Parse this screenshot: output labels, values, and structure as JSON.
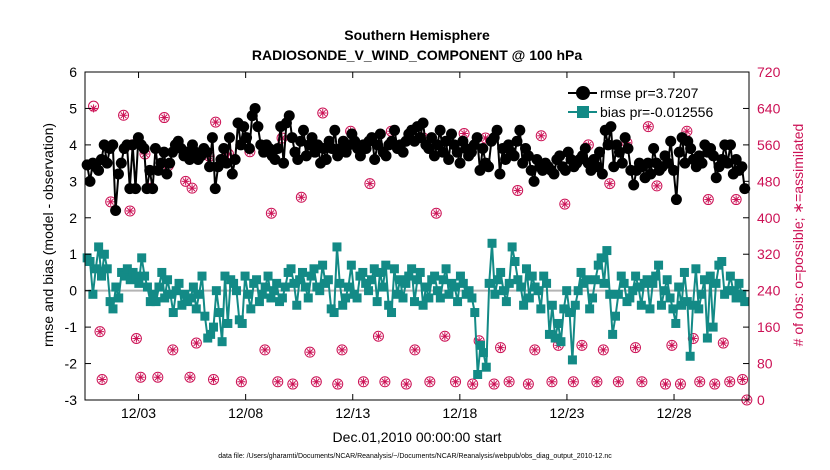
{
  "chart_data": {
    "type": "line",
    "title": "Southern Hemisphere",
    "subtitle": "RADIOSONDE_V_WIND_COMPONENT @ 100 hPa",
    "xlabel": "Dec.01,2010 00:00:00 start",
    "ylabel_left": "rmse and bias (model - observation)",
    "ylabel_right": "# of obs: o=possible; ∗=assimilated",
    "footnote": "data file: /Users/gharamti/Documents/NCAR/Reanalysis/~/Documents/NCAR/Reanalysis/webpub/obs_diag_output_2010-12.nc",
    "xlim": [
      0.5,
      31.5
    ],
    "ylim_left": [
      -3,
      6
    ],
    "ylim_right": [
      0,
      720
    ],
    "x_ticks": [
      3,
      8,
      13,
      18,
      23,
      28
    ],
    "x_tick_labels": [
      "12/03",
      "12/08",
      "12/13",
      "12/18",
      "12/23",
      "12/28"
    ],
    "yticks_left": [
      -3,
      -2,
      -1,
      0,
      1,
      2,
      3,
      4,
      5,
      6
    ],
    "yticks_right": [
      0,
      80,
      160,
      240,
      320,
      400,
      480,
      560,
      640,
      720
    ],
    "grid": false,
    "legend_position": "top-right",
    "colors": {
      "rmse": "#000000",
      "bias": "#138a86",
      "counts": "#cc1155",
      "zero_line": "#b4b4b4"
    },
    "series": [
      {
        "name": "rmse pr=3.7207",
        "axis": "left",
        "values": [
          3.45,
          3.0,
          3.5,
          3.4,
          3.3,
          3.6,
          4.0,
          3.5,
          3.9,
          4.0,
          2.2,
          3.2,
          3.5,
          3.9,
          4.0,
          2.8,
          4.0,
          2.8,
          4.2,
          4.0,
          3.9,
          2.8,
          3.3,
          2.8,
          3.9,
          3.3,
          3.5,
          3.8,
          3.2,
          3.5,
          3.8,
          4.0,
          4.1,
          3.9,
          3.7,
          3.8,
          3.6,
          4.0,
          3.8,
          3.6,
          3.7,
          3.9,
          3.8,
          3.4,
          4.2,
          2.8,
          3.4,
          3.6,
          3.9,
          3.5,
          4.2,
          3.2,
          3.6,
          4.6,
          4.0,
          4.5,
          4.2,
          3.9,
          4.8,
          5.0,
          4.5,
          4.0,
          3.8,
          4.0,
          3.9,
          3.7,
          3.6,
          3.9,
          4.5,
          3.5,
          4.6,
          4.8,
          4.2,
          3.8,
          3.6,
          4.1,
          4.4,
          3.7,
          4.0,
          4.2,
          3.8,
          4.0,
          3.5,
          3.9,
          3.6,
          4.1,
          3.9,
          4.4,
          3.7,
          3.9,
          4.1,
          3.8,
          4.0,
          4.3,
          4.1,
          3.9,
          3.7,
          4.0,
          3.9,
          4.1,
          4.2,
          3.6,
          4.0,
          4.3,
          3.8,
          3.7,
          4.0,
          4.1,
          4.4,
          3.9,
          4.0,
          3.8,
          4.1,
          4.3,
          4.4,
          4.1,
          4.5,
          4.2,
          4.6,
          4.0,
          3.9,
          4.2,
          3.7,
          4.0,
          4.4,
          3.8,
          4.1,
          3.6,
          4.3,
          4.0,
          3.8,
          3.5,
          4.1,
          3.9,
          3.7,
          3.8,
          4.0,
          4.2,
          3.3,
          3.9,
          3.5,
          3.4,
          4.1,
          4.2,
          4.4,
          3.2,
          3.9,
          3.6,
          4.0,
          3.8,
          3.7,
          4.1,
          4.4,
          3.5,
          3.9,
          3.7,
          3.3,
          3.0,
          3.6,
          3.4,
          3.3,
          3.5,
          3.4,
          3.3,
          3.2,
          3.6,
          3.7,
          3.4,
          3.3,
          3.8,
          3.6,
          3.4,
          3.5,
          3.6,
          3.7,
          3.9,
          3.5,
          3.3,
          3.6,
          3.4,
          3.8,
          3.2,
          4.4,
          4.0,
          4.5,
          3.4,
          4.0,
          3.8,
          3.5,
          4.2,
          3.9,
          3.3,
          2.9,
          3.3,
          3.5,
          3.4,
          3.1,
          3.5,
          3.2,
          3.9,
          3.5,
          3.3,
          3.4,
          3.7,
          3.5,
          4.1,
          3.3,
          2.5,
          3.8,
          4.2,
          3.5,
          4.1,
          3.9,
          3.6,
          3.4,
          3.7,
          3.5,
          4.0,
          3.8,
          3.9,
          3.7,
          3.1,
          3.4,
          3.6,
          4.0,
          3.5,
          4.0,
          3.2,
          3.6,
          3.3,
          3.4,
          2.8
        ]
      },
      {
        "name": "bias pr=-0.012556",
        "axis": "left",
        "values": [
          0.9,
          0.8,
          -0.1,
          0.6,
          1.2,
          0.4,
          1.0,
          0.6,
          -0.3,
          -0.5,
          0.1,
          -0.2,
          0.5,
          0.4,
          0.6,
          0.3,
          0.5,
          0.4,
          0.2,
          0.9,
          0.4,
          0.1,
          -0.3,
          -0.1,
          -0.3,
          0.1,
          0.5,
          -0.2,
          0.3,
          -0.1,
          -0.6,
          0.0,
          0.2,
          -0.4,
          -0.1,
          -0.3,
          -0.2,
          0.1,
          -0.5,
          -0.1,
          0.4,
          -0.7,
          -1.3,
          -1.2,
          -1.0,
          0.0,
          -0.6,
          -1.4,
          0.4,
          -0.9,
          0.3,
          0.2,
          0.0,
          -0.8,
          -0.9,
          0.4,
          -0.1,
          -0.5,
          0.2,
          0.3,
          -0.3,
          -0.1,
          0.1,
          0.4,
          -0.2,
          0.0,
          0.2,
          -0.3,
          -0.2,
          0.1,
          0.5,
          0.6,
          0.2,
          -0.4,
          0.3,
          0.5,
          0.1,
          -0.2,
          0.4,
          0.6,
          0.1,
          0.0,
          0.7,
          0.2,
          0.3,
          -0.5,
          -0.6,
          1.2,
          0.2,
          -0.4,
          -0.2,
          0.1,
          0.7,
          -0.1,
          -0.2,
          0.4,
          0.5,
          0.2,
          0.0,
          0.3,
          0.6,
          -0.3,
          0.5,
          0.1,
          0.7,
          -0.4,
          -0.6,
          0.6,
          -0.1,
          0.3,
          -0.2,
          0.2,
          0.4,
          0.6,
          -0.3,
          0.3,
          0.5,
          -0.4,
          0.1,
          -0.2,
          0.3,
          0.4,
          0.0,
          -0.2,
          0.3,
          0.6,
          -0.1,
          0.2,
          0.1,
          -0.3,
          0.4,
          0.2,
          -0.1,
          0.0,
          -0.2,
          -0.6,
          -2.3,
          -1.5,
          -1.7,
          -2.1,
          0.2,
          1.3,
          -0.1,
          0.3,
          0.5,
          0.0,
          -0.3,
          0.2,
          1.2,
          0.8,
          0.3,
          0.1,
          -0.4,
          0.6,
          -0.2,
          0.4,
          0.1,
          0.0,
          -0.5,
          0.4,
          0.2,
          -1.2,
          -0.4,
          -1.3,
          -0.9,
          -1.4,
          -0.5,
          0.0,
          -0.6,
          -1.9,
          -0.4,
          0.0,
          0.5,
          0.2,
          0.3,
          -0.5,
          -0.2,
          0.3,
          0.7,
          0.9,
          0.2,
          1.1,
          -0.1,
          -1.2,
          -0.7,
          -0.1,
          0.4,
          0.2,
          -0.3,
          -0.2,
          0.0,
          0.4,
          0.1,
          -0.4,
          0.2,
          0.3,
          -0.5,
          0.2,
          0.4,
          0.7,
          -0.4,
          0.0,
          0.3,
          -0.2,
          -0.5,
          -0.9,
          0.1,
          -0.4,
          0.5,
          -0.3,
          -1.8,
          -0.4,
          0.6,
          -0.5,
          -0.1,
          0.3,
          -1.3,
          0.4,
          -1.0,
          0.2,
          0.7,
          0.8,
          -0.1,
          0.0,
          0.4,
          0.0,
          -0.2,
          0.2,
          -0.1,
          -0.3
        ]
      }
    ],
    "counts_possible": [
      {
        "x": 0.9,
        "y": 645
      },
      {
        "x": 1.2,
        "y": 150
      },
      {
        "x": 1.3,
        "y": 45
      },
      {
        "x": 1.7,
        "y": 435
      },
      {
        "x": 2.3,
        "y": 625
      },
      {
        "x": 2.6,
        "y": 415
      },
      {
        "x": 2.7,
        "y": 560
      },
      {
        "x": 2.9,
        "y": 135
      },
      {
        "x": 3.1,
        "y": 50
      },
      {
        "x": 3.3,
        "y": 540
      },
      {
        "x": 3.6,
        "y": 465
      },
      {
        "x": 3.9,
        "y": 50
      },
      {
        "x": 4.2,
        "y": 620
      },
      {
        "x": 4.4,
        "y": 515
      },
      {
        "x": 4.6,
        "y": 110
      },
      {
        "x": 5.2,
        "y": 480
      },
      {
        "x": 5.4,
        "y": 50
      },
      {
        "x": 5.5,
        "y": 465
      },
      {
        "x": 5.7,
        "y": 125
      },
      {
        "x": 6.3,
        "y": 535
      },
      {
        "x": 6.5,
        "y": 45
      },
      {
        "x": 6.6,
        "y": 610
      },
      {
        "x": 7.2,
        "y": 540
      },
      {
        "x": 7.8,
        "y": 40
      },
      {
        "x": 8.2,
        "y": 545
      },
      {
        "x": 8.9,
        "y": 110
      },
      {
        "x": 9.2,
        "y": 410
      },
      {
        "x": 9.5,
        "y": 40
      },
      {
        "x": 9.7,
        "y": 575
      },
      {
        "x": 10.2,
        "y": 35
      },
      {
        "x": 10.6,
        "y": 445
      },
      {
        "x": 11.0,
        "y": 105
      },
      {
        "x": 11.3,
        "y": 40
      },
      {
        "x": 11.6,
        "y": 630
      },
      {
        "x": 12.3,
        "y": 35
      },
      {
        "x": 12.5,
        "y": 110
      },
      {
        "x": 12.9,
        "y": 590
      },
      {
        "x": 13.5,
        "y": 40
      },
      {
        "x": 13.8,
        "y": 475
      },
      {
        "x": 14.2,
        "y": 140
      },
      {
        "x": 14.5,
        "y": 40
      },
      {
        "x": 14.8,
        "y": 590
      },
      {
        "x": 15.5,
        "y": 35
      },
      {
        "x": 15.9,
        "y": 110
      },
      {
        "x": 16.3,
        "y": 575
      },
      {
        "x": 16.6,
        "y": 40
      },
      {
        "x": 16.9,
        "y": 410
      },
      {
        "x": 17.3,
        "y": 140
      },
      {
        "x": 17.8,
        "y": 40
      },
      {
        "x": 18.2,
        "y": 585
      },
      {
        "x": 18.6,
        "y": 35
      },
      {
        "x": 18.9,
        "y": 130
      },
      {
        "x": 19.2,
        "y": 575
      },
      {
        "x": 19.6,
        "y": 35
      },
      {
        "x": 19.9,
        "y": 115
      },
      {
        "x": 20.3,
        "y": 40
      },
      {
        "x": 20.7,
        "y": 460
      },
      {
        "x": 21.2,
        "y": 35
      },
      {
        "x": 21.5,
        "y": 110
      },
      {
        "x": 21.8,
        "y": 580
      },
      {
        "x": 22.3,
        "y": 40
      },
      {
        "x": 22.6,
        "y": 120
      },
      {
        "x": 22.9,
        "y": 430
      },
      {
        "x": 23.3,
        "y": 40
      },
      {
        "x": 23.7,
        "y": 120
      },
      {
        "x": 24.0,
        "y": 560
      },
      {
        "x": 24.4,
        "y": 40
      },
      {
        "x": 24.7,
        "y": 110
      },
      {
        "x": 25.0,
        "y": 475
      },
      {
        "x": 25.4,
        "y": 40
      },
      {
        "x": 25.8,
        "y": 565
      },
      {
        "x": 26.2,
        "y": 115
      },
      {
        "x": 26.5,
        "y": 40
      },
      {
        "x": 26.8,
        "y": 600
      },
      {
        "x": 27.2,
        "y": 470
      },
      {
        "x": 27.6,
        "y": 35
      },
      {
        "x": 27.9,
        "y": 120
      },
      {
        "x": 28.3,
        "y": 35
      },
      {
        "x": 28.6,
        "y": 590
      },
      {
        "x": 28.9,
        "y": 135
      },
      {
        "x": 29.2,
        "y": 40
      },
      {
        "x": 29.6,
        "y": 440
      },
      {
        "x": 29.9,
        "y": 35
      },
      {
        "x": 30.3,
        "y": 125
      },
      {
        "x": 30.6,
        "y": 40
      },
      {
        "x": 30.9,
        "y": 440
      },
      {
        "x": 31.2,
        "y": 45
      },
      {
        "x": 31.4,
        "y": 0
      }
    ],
    "counts_assimilated": [
      {
        "x": 0.9,
        "y": 640
      },
      {
        "x": 1.2,
        "y": 150
      },
      {
        "x": 1.3,
        "y": 45
      },
      {
        "x": 1.7,
        "y": 435
      },
      {
        "x": 2.3,
        "y": 625
      },
      {
        "x": 2.6,
        "y": 415
      },
      {
        "x": 2.7,
        "y": 560
      },
      {
        "x": 2.9,
        "y": 135
      },
      {
        "x": 3.1,
        "y": 50
      },
      {
        "x": 3.3,
        "y": 540
      },
      {
        "x": 3.6,
        "y": 465
      },
      {
        "x": 3.9,
        "y": 50
      },
      {
        "x": 4.2,
        "y": 620
      },
      {
        "x": 4.4,
        "y": 515
      },
      {
        "x": 4.6,
        "y": 110
      },
      {
        "x": 5.2,
        "y": 480
      },
      {
        "x": 5.4,
        "y": 50
      },
      {
        "x": 5.5,
        "y": 465
      },
      {
        "x": 5.7,
        "y": 125
      },
      {
        "x": 6.3,
        "y": 535
      },
      {
        "x": 6.5,
        "y": 45
      },
      {
        "x": 6.6,
        "y": 610
      },
      {
        "x": 7.2,
        "y": 540
      },
      {
        "x": 7.8,
        "y": 40
      },
      {
        "x": 8.2,
        "y": 545
      },
      {
        "x": 8.9,
        "y": 110
      },
      {
        "x": 9.2,
        "y": 410
      },
      {
        "x": 9.5,
        "y": 40
      },
      {
        "x": 9.7,
        "y": 575
      },
      {
        "x": 10.2,
        "y": 35
      },
      {
        "x": 10.6,
        "y": 445
      },
      {
        "x": 11.0,
        "y": 105
      },
      {
        "x": 11.3,
        "y": 40
      },
      {
        "x": 11.6,
        "y": 630
      },
      {
        "x": 12.3,
        "y": 35
      },
      {
        "x": 12.5,
        "y": 110
      },
      {
        "x": 12.9,
        "y": 590
      },
      {
        "x": 13.5,
        "y": 40
      },
      {
        "x": 13.8,
        "y": 475
      },
      {
        "x": 14.2,
        "y": 140
      },
      {
        "x": 14.5,
        "y": 40
      },
      {
        "x": 14.8,
        "y": 590
      },
      {
        "x": 15.5,
        "y": 35
      },
      {
        "x": 15.9,
        "y": 110
      },
      {
        "x": 16.3,
        "y": 575
      },
      {
        "x": 16.6,
        "y": 40
      },
      {
        "x": 16.9,
        "y": 410
      },
      {
        "x": 17.3,
        "y": 140
      },
      {
        "x": 17.8,
        "y": 40
      },
      {
        "x": 18.2,
        "y": 585
      },
      {
        "x": 18.6,
        "y": 35
      },
      {
        "x": 18.9,
        "y": 130
      },
      {
        "x": 19.2,
        "y": 575
      },
      {
        "x": 19.6,
        "y": 35
      },
      {
        "x": 19.9,
        "y": 115
      },
      {
        "x": 20.3,
        "y": 40
      },
      {
        "x": 20.7,
        "y": 460
      },
      {
        "x": 21.2,
        "y": 35
      },
      {
        "x": 21.5,
        "y": 110
      },
      {
        "x": 21.8,
        "y": 580
      },
      {
        "x": 22.3,
        "y": 40
      },
      {
        "x": 22.6,
        "y": 120
      },
      {
        "x": 22.9,
        "y": 430
      },
      {
        "x": 23.3,
        "y": 40
      },
      {
        "x": 23.7,
        "y": 120
      },
      {
        "x": 24.0,
        "y": 560
      },
      {
        "x": 24.4,
        "y": 40
      },
      {
        "x": 24.7,
        "y": 110
      },
      {
        "x": 25.0,
        "y": 475
      },
      {
        "x": 25.4,
        "y": 40
      },
      {
        "x": 25.8,
        "y": 565
      },
      {
        "x": 26.2,
        "y": 115
      },
      {
        "x": 26.5,
        "y": 40
      },
      {
        "x": 26.8,
        "y": 600
      },
      {
        "x": 27.2,
        "y": 470
      },
      {
        "x": 27.6,
        "y": 35
      },
      {
        "x": 27.9,
        "y": 120
      },
      {
        "x": 28.3,
        "y": 35
      },
      {
        "x": 28.6,
        "y": 590
      },
      {
        "x": 28.9,
        "y": 135
      },
      {
        "x": 29.2,
        "y": 40
      },
      {
        "x": 29.6,
        "y": 440
      },
      {
        "x": 29.9,
        "y": 35
      },
      {
        "x": 30.3,
        "y": 125
      },
      {
        "x": 30.6,
        "y": 40
      },
      {
        "x": 30.9,
        "y": 440
      },
      {
        "x": 31.2,
        "y": 45
      },
      {
        "x": 31.4,
        "y": 0
      }
    ]
  }
}
